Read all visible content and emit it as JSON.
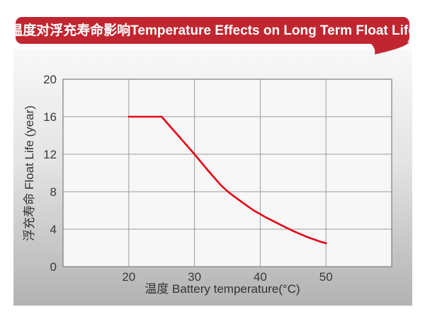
{
  "banner": {
    "title_zh": "温度对浮充寿命影响",
    "title_en": "Temperature Effects on Long Term Float Life",
    "bg_color": "#c12630",
    "text_color": "#ffffff"
  },
  "colors": {
    "panel_top": "#f8f8f8",
    "panel_bottom": "#b2b2b2",
    "plot_bg": "#f7f7f7",
    "grid": "#9c9c9c",
    "plot_border": "#7d7d7d",
    "tick_text": "#3a3a3a"
  },
  "chart_data": {
    "type": "line",
    "title": "温度对浮充寿命影响Temperature Effects on Long Term Float Life",
    "xlabel": "温度  Battery temperature(°C)",
    "ylabel": "浮充寿命 Float Life (year)",
    "xlim": [
      10,
      60
    ],
    "ylim": [
      0,
      20
    ],
    "x_ticks": [
      20,
      30,
      40,
      50
    ],
    "y_ticks": [
      0,
      4,
      8,
      12,
      16,
      20
    ],
    "grid": true,
    "legend": "none",
    "line_color": "#e60014",
    "series": [
      {
        "name": "float-life-vs-temperature",
        "x": [
          20,
          25,
          26.5,
          28,
          29,
          30,
          31,
          32,
          33,
          34,
          35,
          36,
          37,
          38,
          39,
          40,
          41,
          42,
          43,
          44,
          45,
          46,
          47,
          48,
          49,
          50
        ],
        "y": [
          16,
          16,
          14.8,
          13.6,
          12.8,
          12.0,
          11.15,
          10.3,
          9.5,
          8.7,
          8.05,
          7.5,
          7.0,
          6.5,
          6.0,
          5.6,
          5.2,
          4.85,
          4.5,
          4.15,
          3.8,
          3.5,
          3.2,
          2.95,
          2.7,
          2.5
        ]
      }
    ]
  }
}
